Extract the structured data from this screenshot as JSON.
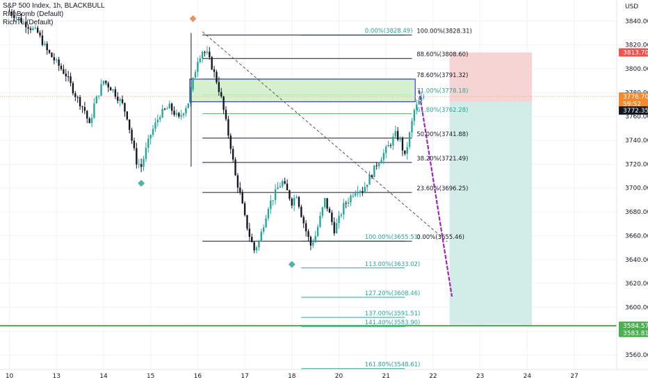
{
  "header": {
    "title": "S&P 500 Index, 1h, BLACKBULL",
    "indicators": [
      "RichBomb (Default)",
      "RichTL (Default)"
    ]
  },
  "colors": {
    "up": "#26a69a",
    "down": "#131722",
    "fib_black": "#131722",
    "fib_teal": "#26a69a",
    "fib_green": "#4caf50",
    "stop_zone": "#f7d4d4",
    "target_zone": "#d2ede8",
    "diamond_orange": "#e8946a",
    "diamond_teal": "#4fb3ac",
    "projection": "#9c27b0",
    "box_fill": "#cfeec8",
    "box_border": "#3b3bd6",
    "support_line": "#4caf50",
    "badge_red": "#ef5350",
    "badge_teal": "#26a69a",
    "badge_dark": "#131722",
    "badge_green": "#4caf50"
  },
  "chart_data": {
    "type": "candlestick",
    "title": "S&P 500 Index, 1h, BLACKBULL",
    "currency": "USD",
    "ylim": [
      3540,
      3850
    ],
    "y_ticks": [
      3560,
      3580,
      3600,
      3620,
      3640,
      3660,
      3680,
      3700,
      3720,
      3740,
      3760,
      3780,
      3800,
      3820,
      3840
    ],
    "x_ticks": [
      {
        "label": "10",
        "t": 0
      },
      {
        "label": "13",
        "t": 10
      },
      {
        "label": "14",
        "t": 20
      },
      {
        "label": "15",
        "t": 30
      },
      {
        "label": "16",
        "t": 40
      },
      {
        "label": "17",
        "t": 50
      },
      {
        "label": "18",
        "t": 60
      },
      {
        "label": "20",
        "t": 70
      },
      {
        "label": "21",
        "t": 80
      },
      {
        "label": "22",
        "t": 90
      },
      {
        "label": "23",
        "t": 100
      },
      {
        "label": "24",
        "t": 110
      },
      {
        "label": "27",
        "t": 120
      }
    ],
    "price_series": [
      {
        "t": 0,
        "p": 3848
      },
      {
        "t": 2,
        "p": 3842
      },
      {
        "t": 4,
        "p": 3836
      },
      {
        "t": 6,
        "p": 3830
      },
      {
        "t": 8,
        "p": 3815
      },
      {
        "t": 10,
        "p": 3805
      },
      {
        "t": 12,
        "p": 3795
      },
      {
        "t": 14,
        "p": 3778
      },
      {
        "t": 16,
        "p": 3765
      },
      {
        "t": 17,
        "p": 3752
      },
      {
        "t": 18,
        "p": 3770
      },
      {
        "t": 20,
        "p": 3790
      },
      {
        "t": 22,
        "p": 3782
      },
      {
        "t": 24,
        "p": 3770
      },
      {
        "t": 25,
        "p": 3760
      },
      {
        "t": 26,
        "p": 3740
      },
      {
        "t": 27,
        "p": 3722
      },
      {
        "t": 28,
        "p": 3718
      },
      {
        "t": 29,
        "p": 3732
      },
      {
        "t": 30,
        "p": 3745
      },
      {
        "t": 32,
        "p": 3762
      },
      {
        "t": 34,
        "p": 3768
      },
      {
        "t": 36,
        "p": 3758
      },
      {
        "t": 38,
        "p": 3772
      },
      {
        "t": 39,
        "p": 3790
      },
      {
        "t": 40,
        "p": 3808
      },
      {
        "t": 41,
        "p": 3815
      },
      {
        "t": 42,
        "p": 3812
      },
      {
        "t": 43,
        "p": 3802
      },
      {
        "t": 44,
        "p": 3790
      },
      {
        "t": 45,
        "p": 3775
      },
      {
        "t": 46,
        "p": 3755
      },
      {
        "t": 47,
        "p": 3735
      },
      {
        "t": 48,
        "p": 3710
      },
      {
        "t": 49,
        "p": 3695
      },
      {
        "t": 50,
        "p": 3675
      },
      {
        "t": 51,
        "p": 3660
      },
      {
        "t": 52,
        "p": 3648
      },
      {
        "t": 53,
        "p": 3655
      },
      {
        "t": 54,
        "p": 3670
      },
      {
        "t": 55,
        "p": 3685
      },
      {
        "t": 56,
        "p": 3692
      },
      {
        "t": 57,
        "p": 3700
      },
      {
        "t": 58,
        "p": 3705
      },
      {
        "t": 59,
        "p": 3697
      },
      {
        "t": 60,
        "p": 3688
      },
      {
        "t": 61,
        "p": 3695
      },
      {
        "t": 62,
        "p": 3678
      },
      {
        "t": 63,
        "p": 3664
      },
      {
        "t": 64,
        "p": 3652
      },
      {
        "t": 65,
        "p": 3660
      },
      {
        "t": 66,
        "p": 3675
      },
      {
        "t": 67,
        "p": 3690
      },
      {
        "t": 68,
        "p": 3678
      },
      {
        "t": 69,
        "p": 3665
      },
      {
        "t": 70,
        "p": 3674
      },
      {
        "t": 71,
        "p": 3685
      },
      {
        "t": 72,
        "p": 3690
      },
      {
        "t": 73,
        "p": 3696
      },
      {
        "t": 74,
        "p": 3700
      },
      {
        "t": 75,
        "p": 3698
      },
      {
        "t": 76,
        "p": 3705
      },
      {
        "t": 77,
        "p": 3712
      },
      {
        "t": 78,
        "p": 3720
      },
      {
        "t": 79,
        "p": 3726
      },
      {
        "t": 80,
        "p": 3732
      },
      {
        "t": 81,
        "p": 3738
      },
      {
        "t": 82,
        "p": 3745
      },
      {
        "t": 83,
        "p": 3740
      },
      {
        "t": 84,
        "p": 3726
      },
      {
        "t": 85,
        "p": 3745
      },
      {
        "t": 86,
        "p": 3765
      },
      {
        "t": 87,
        "p": 3772
      },
      {
        "t": 88,
        "p": 3776.7
      }
    ],
    "fib_retracement": [
      {
        "label": "0.00%(3828.49)",
        "price": 3828.49
      },
      {
        "label": "100.00%(3828.31)",
        "price": 3828.31
      },
      {
        "label": "88.60%(3808.60)",
        "price": 3808.6
      },
      {
        "label": "78.60%(3791.32)",
        "price": 3791.32
      },
      {
        "label": "71.00%(3778.18)",
        "price": 3778.18
      },
      {
        "label": "61.80%(3762.28)",
        "price": 3762.28
      },
      {
        "label": "50.00%(3741.88)",
        "price": 3741.88
      },
      {
        "label": "38.20%(3721.49)",
        "price": 3721.49
      },
      {
        "label": "23.60%(3696.25)",
        "price": 3696.25
      },
      {
        "label": "100.00%(3655.51)",
        "price": 3655.51
      },
      {
        "label": "0.00%(3655.46)",
        "price": 3655.46
      }
    ],
    "fib_extension": [
      {
        "label": "113.00%(3633.02)",
        "price": 3633.02
      },
      {
        "label": "127.20%(3608.46)",
        "price": 3608.46
      },
      {
        "label": "137.00%(3591.51)",
        "price": 3591.51
      },
      {
        "label": "141.40%(3583.90)",
        "price": 3583.9
      },
      {
        "label": "161.80%(3548.61)",
        "price": 3548.61
      }
    ],
    "zone_box": {
      "top": 3791.32,
      "bottom": 3772.35
    },
    "stop_zone": {
      "top": 3813.7,
      "bottom": 3772.35
    },
    "target_zone": {
      "top": 3772.35,
      "bottom": 3584.57
    },
    "support_line": 3584.57,
    "trendline": {
      "from": {
        "t": 41,
        "p": 3831
      },
      "to": {
        "t": 93,
        "p": 3655
      }
    },
    "projection": {
      "from": {
        "t": 87,
        "p": 3782
      },
      "to": {
        "t": 94,
        "p": 3609
      }
    },
    "diamonds": [
      {
        "t": 39,
        "p": 3842,
        "kind": "orange"
      },
      {
        "t": 28,
        "p": 3704,
        "kind": "teal"
      },
      {
        "t": 60,
        "p": 3636,
        "kind": "teal"
      }
    ],
    "price_badges": [
      {
        "label": "3813.70",
        "price": 3813.7,
        "kind": "red"
      },
      {
        "label": "3776.70",
        "price": 3776.7,
        "kind": "orange"
      },
      {
        "label": "59:52",
        "price": 3770.5,
        "kind": "orange"
      },
      {
        "label": "3772.35",
        "price": 3765.0,
        "kind": "dark"
      },
      {
        "label": "3584.57",
        "price": 3584.57,
        "kind": "green"
      },
      {
        "label": "3583.81",
        "price": 3578.5,
        "kind": "green"
      }
    ],
    "current_price": 3776.7
  }
}
